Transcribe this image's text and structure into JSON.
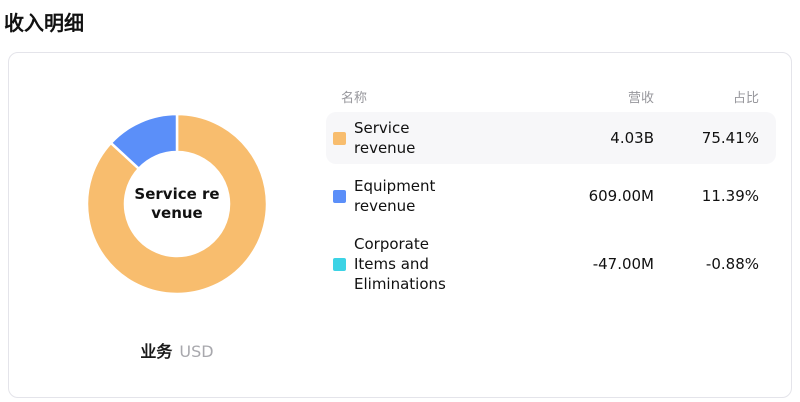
{
  "page": {
    "title": "收入明细"
  },
  "table": {
    "columns": [
      {
        "key": "name",
        "label": "名称"
      },
      {
        "key": "revenue",
        "label": "营收"
      },
      {
        "key": "share",
        "label": "占比"
      }
    ],
    "rows": [
      {
        "name": "Service revenue",
        "revenue": "4.03B",
        "share": "75.41%",
        "color": "#F8BD6E",
        "highlighted": true
      },
      {
        "name": "Equipment revenue",
        "revenue": "609.00M",
        "share": "11.39%",
        "color": "#5B8FF9",
        "highlighted": false
      },
      {
        "name": "Corporate Items and Eliminations",
        "revenue": "-47.00M",
        "share": "-0.88%",
        "color": "#3CD3E5",
        "highlighted": false
      }
    ]
  },
  "chart_data": {
    "type": "pie",
    "donut": true,
    "title": "收入明细",
    "dimension_label": "业务",
    "unit": "USD",
    "center_label": "Service revenue",
    "center_label_lines": [
      "Service re",
      "venue"
    ],
    "legend_position": "right-table",
    "note": "negative slices are not drawn in the donut",
    "series": [
      {
        "name": "Service revenue",
        "value": 4030000000,
        "value_label": "4.03B",
        "share_pct": 75.41,
        "color": "#F8BD6E"
      },
      {
        "name": "Equipment revenue",
        "value": 609000000,
        "value_label": "609.00M",
        "share_pct": 11.39,
        "color": "#5B8FF9"
      },
      {
        "name": "Corporate Items and Eliminations",
        "value": -47000000,
        "value_label": "-47.00M",
        "share_pct": -0.88,
        "color": "#3CD3E5"
      }
    ]
  }
}
